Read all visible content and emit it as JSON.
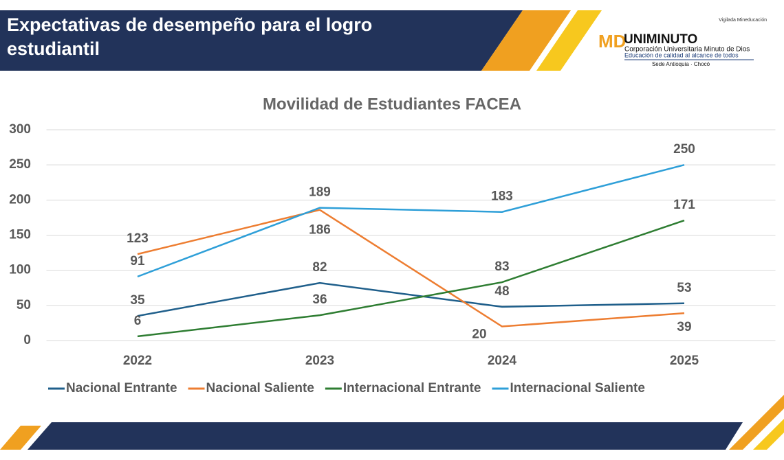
{
  "header": {
    "title_lines": [
      "Expectativas de desempeño para el logro",
      "estudiantil"
    ]
  },
  "logo": {
    "vigilada": "Vigilada Mineducación",
    "name": "UNIMINUTO",
    "line1": "Corporación Universitaria Minuto de Dios",
    "line2": "Educación de calidad al alcance de todos",
    "sede": "Sede Antioquia · Chocó"
  },
  "chart_data": {
    "type": "line",
    "title": "Movilidad de Estudiantes FACEA",
    "categories": [
      "2022",
      "2023",
      "2024",
      "2025"
    ],
    "series": [
      {
        "name": "Nacional Entrante",
        "color": "#1f5f8b",
        "values": [
          35,
          82,
          48,
          53
        ]
      },
      {
        "name": "Nacional Saliente",
        "color": "#ed7d31",
        "values": [
          123,
          186,
          20,
          39
        ]
      },
      {
        "name": "Internacional Entrante",
        "color": "#2e7d32",
        "values": [
          6,
          36,
          83,
          171
        ]
      },
      {
        "name": "Internacional Saliente",
        "color": "#2e9fd8",
        "values": [
          91,
          189,
          183,
          250
        ]
      }
    ],
    "ylim": [
      0,
      300
    ],
    "yticks": [
      0,
      50,
      100,
      150,
      200,
      250,
      300
    ],
    "grid": true,
    "legend": "bottom"
  }
}
